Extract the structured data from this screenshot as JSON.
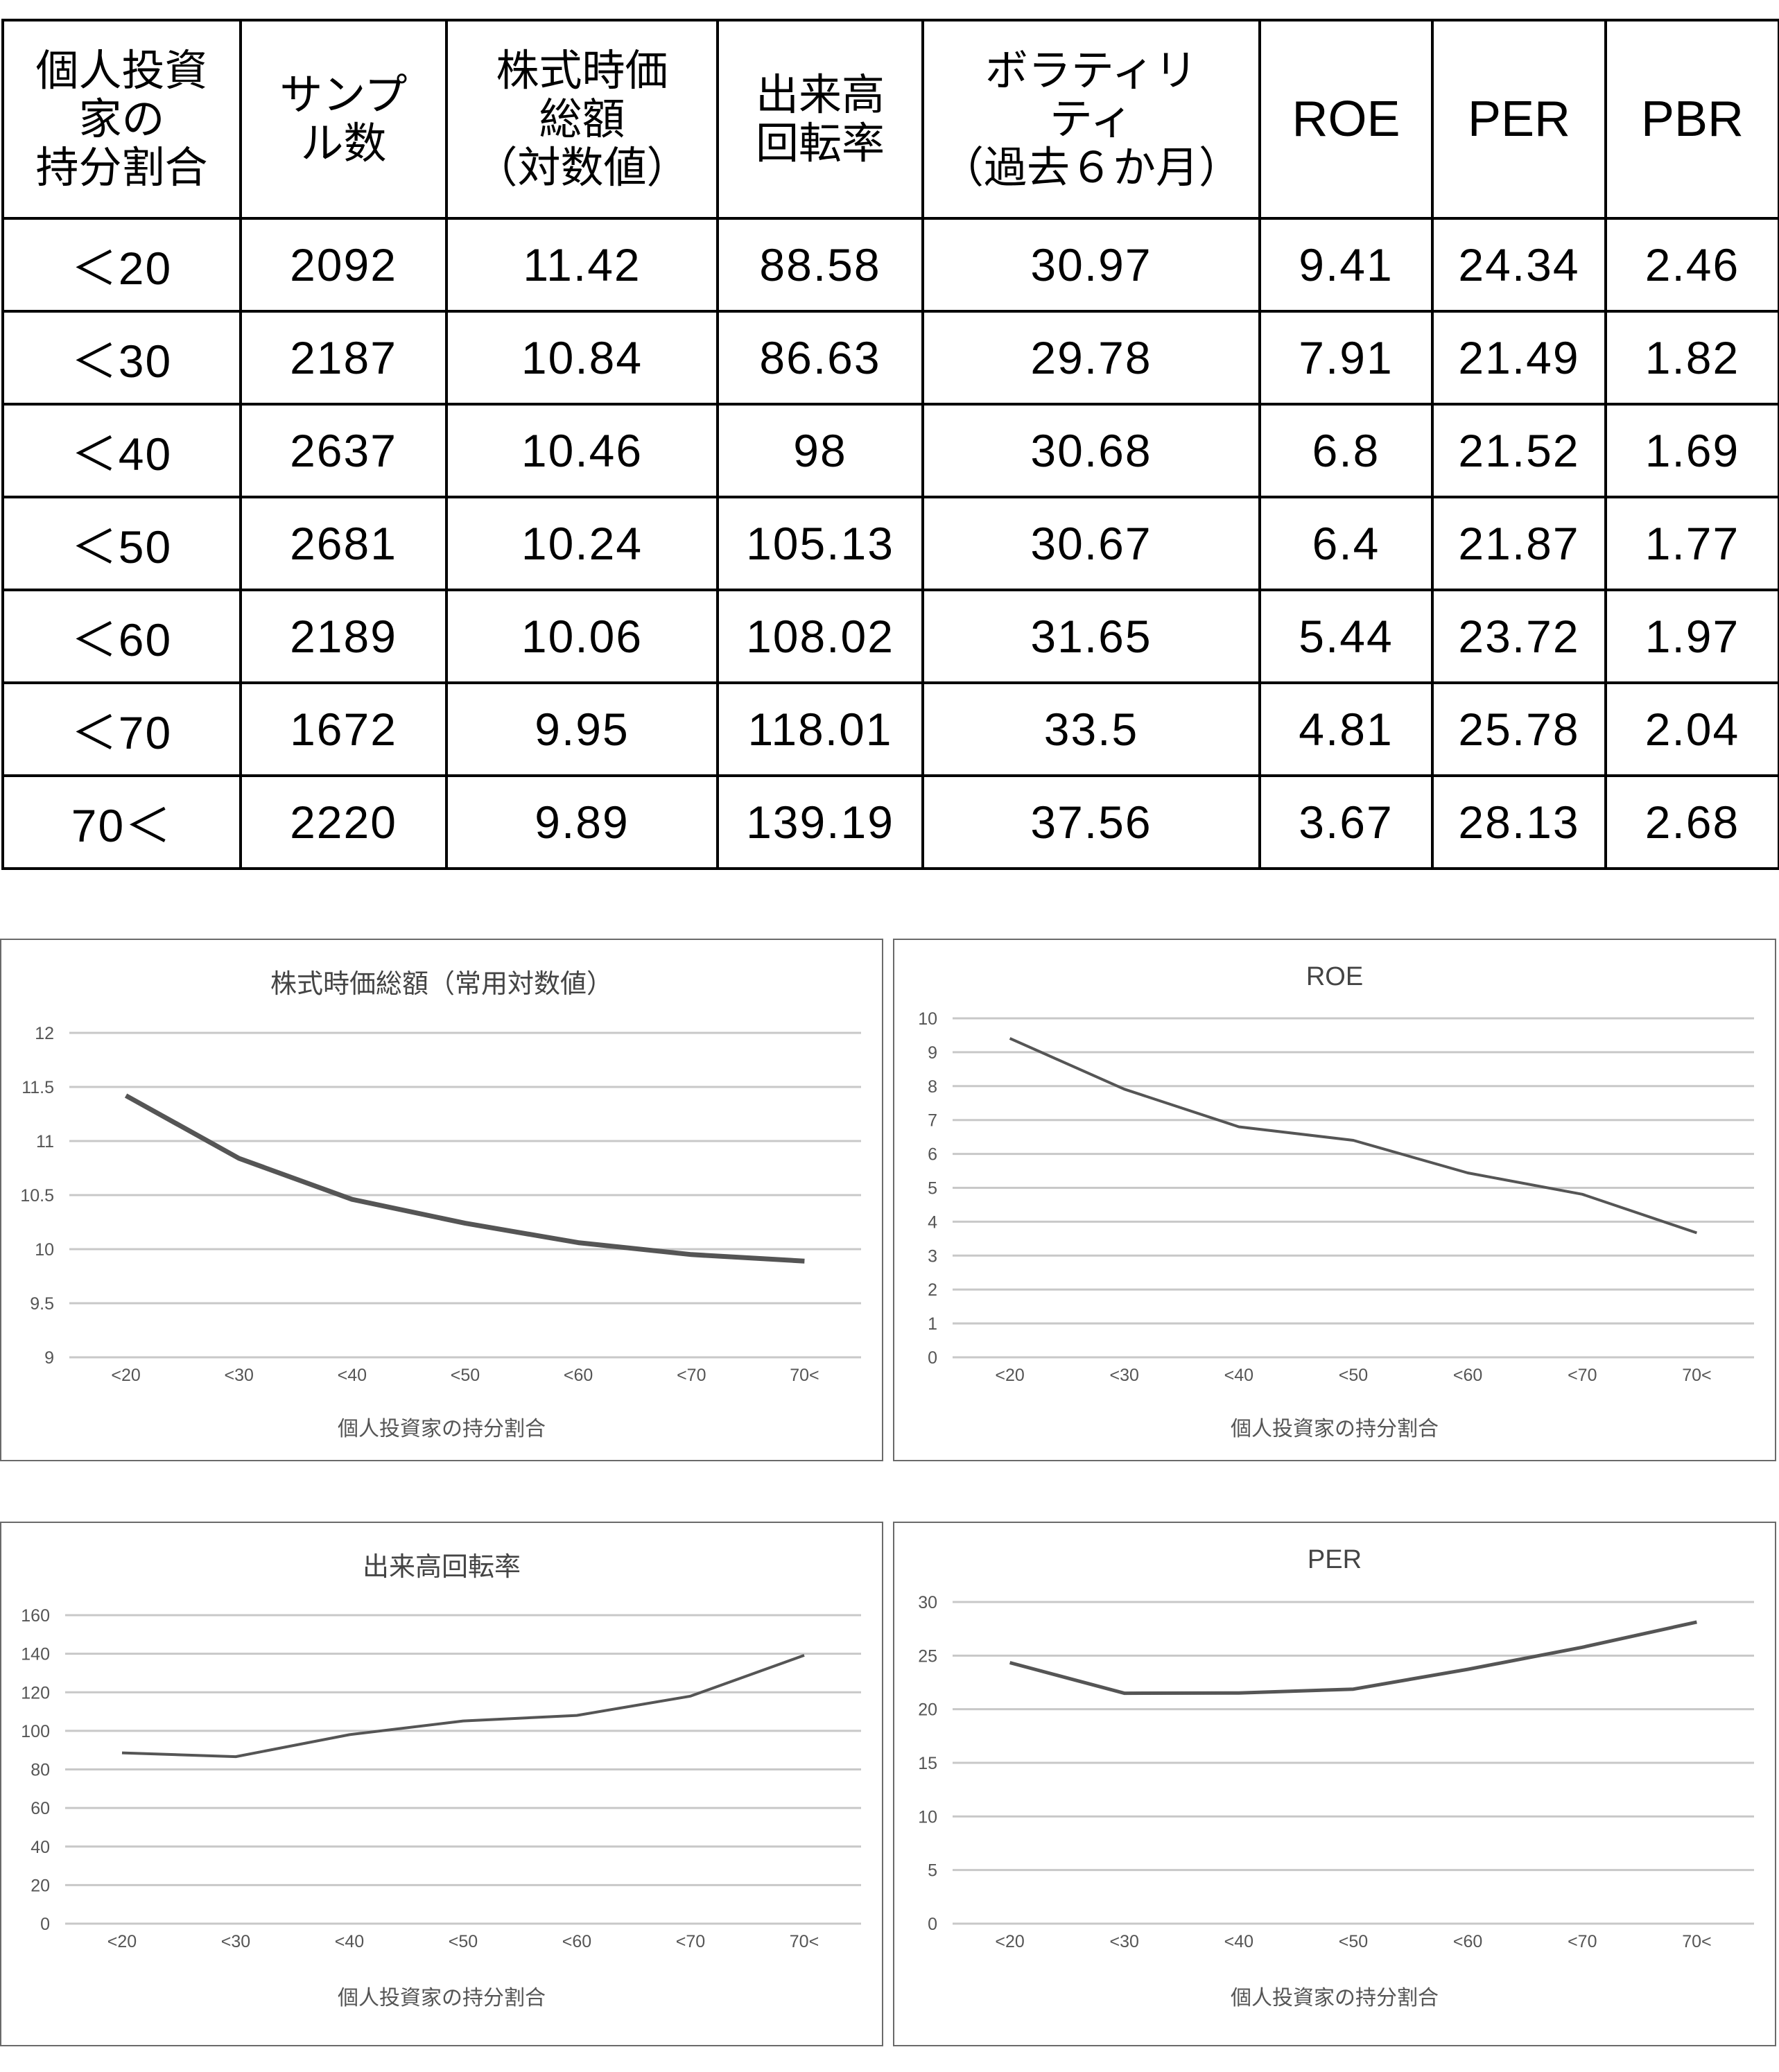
{
  "table": {
    "headers": [
      {
        "lines": [
          "個人投資",
          "家の",
          "持分割合"
        ]
      },
      {
        "lines": [
          "サンプ",
          "ル数"
        ]
      },
      {
        "lines": [
          "株式時価",
          "総額",
          "（対数値）"
        ]
      },
      {
        "lines": [
          "出来高",
          "回転率"
        ]
      },
      {
        "lines": [
          "ボラティリ",
          "ティ",
          "（過去６か月）"
        ]
      },
      {
        "lines": [
          "ROE"
        ]
      },
      {
        "lines": [
          "PER"
        ]
      },
      {
        "lines": [
          "PBR"
        ]
      }
    ],
    "rows": [
      [
        "＜20",
        "2092",
        "11.42",
        "88.58",
        "30.97",
        "9.41",
        "24.34",
        "2.46"
      ],
      [
        "＜30",
        "2187",
        "10.84",
        "86.63",
        "29.78",
        "7.91",
        "21.49",
        "1.82"
      ],
      [
        "＜40",
        "2637",
        "10.46",
        "98",
        "30.68",
        "6.8",
        "21.52",
        "1.69"
      ],
      [
        "＜50",
        "2681",
        "10.24",
        "105.13",
        "30.67",
        "6.4",
        "21.87",
        "1.77"
      ],
      [
        "＜60",
        "2189",
        "10.06",
        "108.02",
        "31.65",
        "5.44",
        "23.72",
        "1.97"
      ],
      [
        "＜70",
        "1672",
        "9.95",
        "118.01",
        "33.5",
        "4.81",
        "25.78",
        "2.04"
      ],
      [
        "70＜",
        "2220",
        "9.89",
        "139.19",
        "37.56",
        "3.67",
        "28.13",
        "2.68"
      ]
    ]
  },
  "colors": {
    "line": "#555555",
    "grid": "#c8c8c8",
    "axis_text": "#555555",
    "border": "#6a6a6a"
  },
  "chart_data": [
    {
      "type": "line",
      "title": "株式時価総額（常用対数値）",
      "xlabel": "個人投資家の持分割合",
      "ylabel": "",
      "categories": [
        "<20",
        "<30",
        "<40",
        "<50",
        "<60",
        "<70",
        "70<"
      ],
      "values": [
        11.42,
        10.84,
        10.46,
        10.24,
        10.06,
        9.95,
        9.89
      ],
      "ylim": [
        9,
        12
      ],
      "yticks": [
        "9",
        "9.5",
        "10",
        "10.5",
        "11",
        "11.5",
        "12"
      ],
      "ytick_values": [
        9,
        9.5,
        10,
        10.5,
        11,
        11.5,
        12
      ],
      "grid": true,
      "legend": "none"
    },
    {
      "type": "line",
      "title": "ROE",
      "xlabel": "個人投資家の持分割合",
      "ylabel": "",
      "categories": [
        "<20",
        "<30",
        "<40",
        "<50",
        "<60",
        "<70",
        "70<"
      ],
      "values": [
        9.41,
        7.91,
        6.8,
        6.4,
        5.44,
        4.81,
        3.67
      ],
      "ylim": [
        0,
        10
      ],
      "yticks": [
        "0",
        "1",
        "2",
        "3",
        "4",
        "5",
        "6",
        "7",
        "8",
        "9",
        "10"
      ],
      "ytick_values": [
        0,
        1,
        2,
        3,
        4,
        5,
        6,
        7,
        8,
        9,
        10
      ],
      "grid": true,
      "legend": "none"
    },
    {
      "type": "line",
      "title": "出来高回転率",
      "xlabel": "個人投資家の持分割合",
      "ylabel": "",
      "categories": [
        "<20",
        "<30",
        "<40",
        "<50",
        "<60",
        "<70",
        "70<"
      ],
      "values": [
        88.58,
        86.63,
        98,
        105.13,
        108.02,
        118.01,
        139.19
      ],
      "ylim": [
        0,
        160
      ],
      "yticks": [
        "0",
        "20",
        "40",
        "60",
        "80",
        "100",
        "120",
        "140",
        "160"
      ],
      "ytick_values": [
        0,
        20,
        40,
        60,
        80,
        100,
        120,
        140,
        160
      ],
      "grid": true,
      "legend": "none"
    },
    {
      "type": "line",
      "title": "PER",
      "xlabel": "個人投資家の持分割合",
      "ylabel": "",
      "categories": [
        "<20",
        "<30",
        "<40",
        "<50",
        "<60",
        "<70",
        "70<"
      ],
      "values": [
        24.34,
        21.49,
        21.52,
        21.87,
        23.72,
        25.78,
        28.13
      ],
      "ylim": [
        0,
        30
      ],
      "yticks": [
        "0",
        "5",
        "10",
        "15",
        "20",
        "25",
        "30"
      ],
      "ytick_values": [
        0,
        5,
        10,
        15,
        20,
        25,
        30
      ],
      "grid": true,
      "legend": "none"
    }
  ]
}
